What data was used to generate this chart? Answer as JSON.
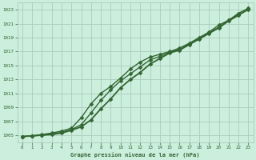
{
  "bg_color": "#cceedd",
  "grid_color": "#aaccbb",
  "line_color": "#336633",
  "marker_color": "#336633",
  "title": "Graphe pression niveau de la mer (hPa)",
  "title_color": "#336633",
  "xlim": [
    -0.5,
    23.5
  ],
  "ylim": [
    1004.0,
    1024.0
  ],
  "xticks": [
    0,
    1,
    2,
    3,
    4,
    5,
    6,
    7,
    8,
    9,
    10,
    11,
    12,
    13,
    14,
    15,
    16,
    17,
    18,
    19,
    20,
    21,
    22,
    23
  ],
  "yticks": [
    1005,
    1007,
    1009,
    1011,
    1013,
    1015,
    1017,
    1019,
    1021,
    1023
  ],
  "series": [
    {
      "x": [
        0,
        1,
        2,
        3,
        4,
        5,
        6,
        7,
        8,
        9,
        10,
        11,
        12,
        13,
        14,
        15,
        16,
        17,
        18,
        19,
        20,
        21,
        22,
        23
      ],
      "y": [
        1004.8,
        1004.9,
        1005.1,
        1005.3,
        1005.6,
        1006.0,
        1007.5,
        1009.5,
        1011.0,
        1012.0,
        1013.2,
        1014.5,
        1015.5,
        1016.2,
        1016.6,
        1017.0,
        1017.5,
        1018.2,
        1019.0,
        1019.8,
        1020.8,
        1021.5,
        1022.5,
        1023.2
      ],
      "marker": "D",
      "linewidth": 1.0
    },
    {
      "x": [
        0,
        1,
        2,
        3,
        4,
        5,
        6,
        7,
        8,
        9,
        10,
        11,
        12,
        13,
        14,
        15,
        16,
        17,
        18,
        19,
        20,
        21,
        22,
        23
      ],
      "y": [
        1004.8,
        1004.9,
        1005.0,
        1005.2,
        1005.4,
        1005.8,
        1006.5,
        1008.2,
        1010.0,
        1011.5,
        1012.8,
        1013.8,
        1014.8,
        1015.8,
        1016.3,
        1016.9,
        1017.3,
        1018.1,
        1018.9,
        1019.7,
        1020.5,
        1021.5,
        1022.3,
        1023.0
      ],
      "marker": "D",
      "linewidth": 1.0
    },
    {
      "x": [
        0,
        1,
        2,
        3,
        4,
        5,
        6,
        7,
        8,
        9,
        10,
        11,
        12,
        13,
        14,
        15,
        16,
        17,
        18,
        19,
        20,
        21,
        22,
        23
      ],
      "y": [
        1004.8,
        1004.9,
        1005.0,
        1005.1,
        1005.3,
        1005.7,
        1006.2,
        1007.2,
        1008.8,
        1010.2,
        1011.8,
        1013.0,
        1014.0,
        1015.2,
        1016.0,
        1016.8,
        1017.2,
        1018.0,
        1018.8,
        1019.6,
        1020.4,
        1021.4,
        1022.2,
        1023.1
      ],
      "marker": "D",
      "linewidth": 1.3
    }
  ]
}
